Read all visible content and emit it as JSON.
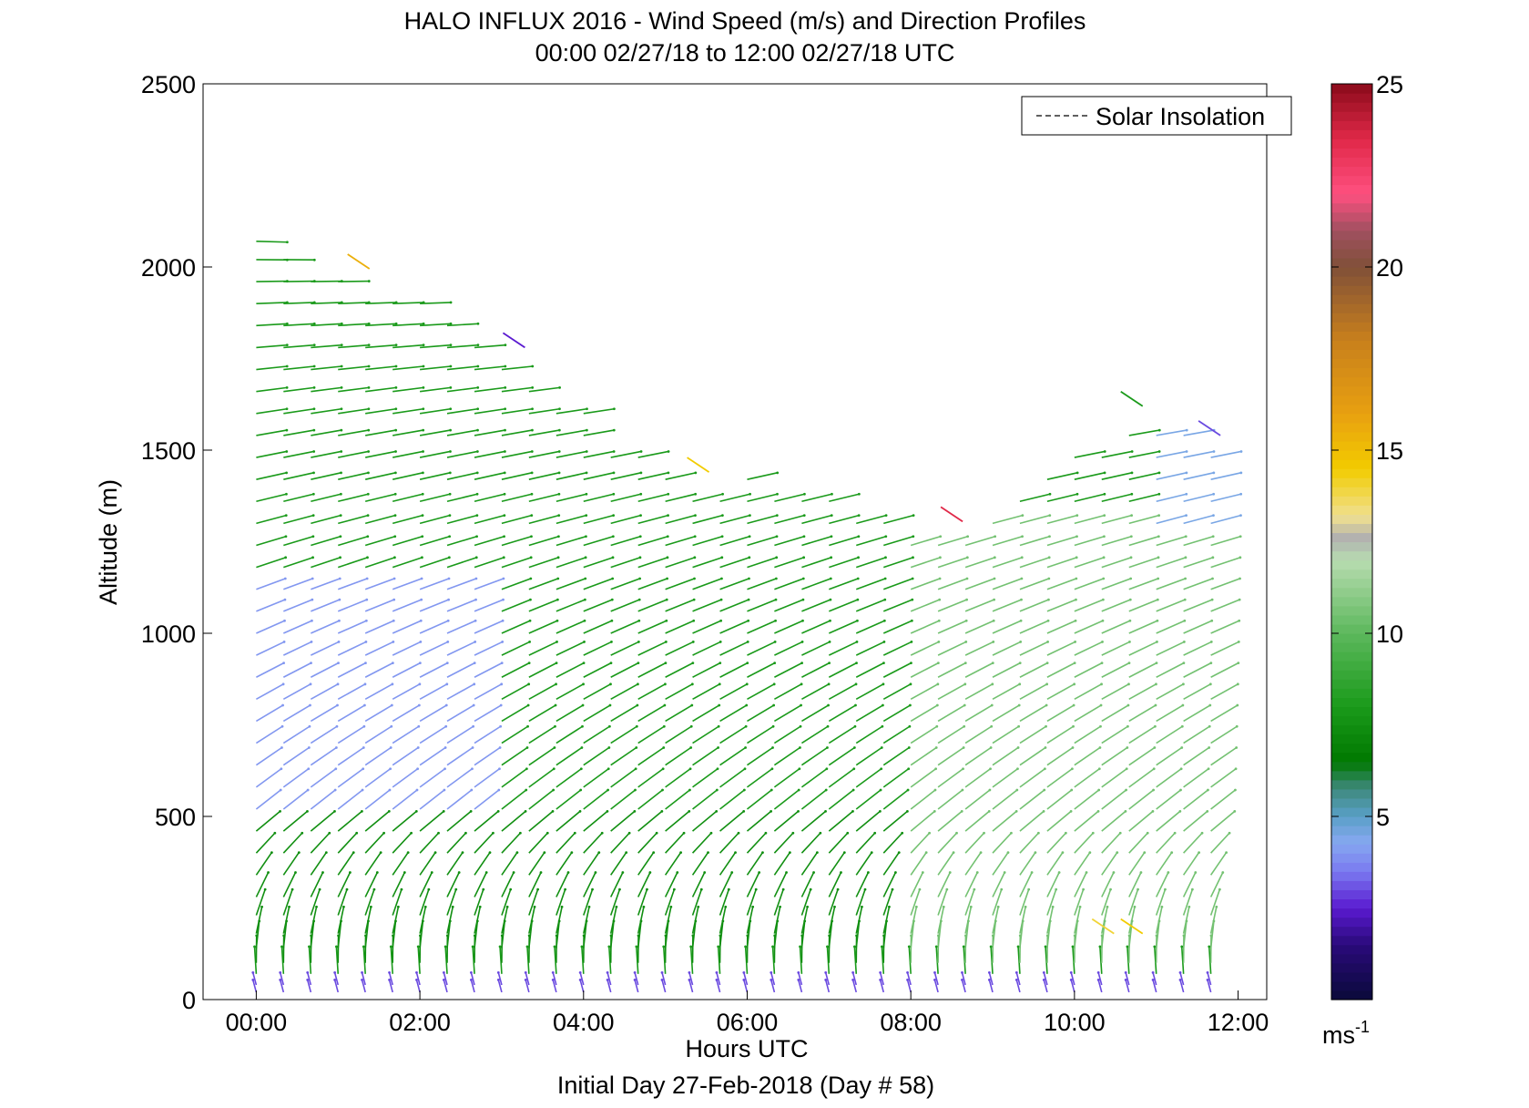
{
  "figure": {
    "title_line1": "HALO INFLUX 2016 - Wind Speed (m/s) and Direction Profiles",
    "title_line2": "00:00 02/27/18 to 12:00 02/27/18  UTC",
    "footer": "Initial Day 27-Feb-2018 (Day # 58)"
  },
  "chart_data": {
    "type": "scatter",
    "subtype": "wind barb / quiver profile",
    "xlabel": "Hours UTC",
    "ylabel": "Altitude (m)",
    "xlim_hours": [
      -0.65,
      12.35
    ],
    "ylim": [
      0,
      2500
    ],
    "x_ticks": [
      "00:00",
      "02:00",
      "04:00",
      "06:00",
      "08:00",
      "10:00",
      "12:00"
    ],
    "x_tick_hours": [
      0,
      2,
      4,
      6,
      8,
      10,
      12
    ],
    "y_ticks": [
      0,
      500,
      1000,
      1500,
      2000,
      2500
    ],
    "legend": {
      "entries": [
        "Solar Insolation"
      ],
      "placement": "top-right",
      "line_color": "#000000",
      "line_style": "dashed"
    },
    "colorbar": {
      "label": "ms",
      "label_superscript": "-1",
      "range": [
        0,
        25
      ],
      "ticks": [
        5,
        10,
        15,
        20,
        25
      ]
    },
    "profile_times_hours": [
      0,
      0.333,
      0.667,
      1.0,
      1.333,
      1.667,
      2.0,
      2.333,
      2.667,
      3.0,
      3.333,
      3.667,
      4.0,
      4.333,
      4.667,
      5.0,
      5.333,
      5.667,
      6.0,
      6.333,
      6.667,
      7.0,
      7.333,
      7.667,
      8.0,
      8.333,
      8.667,
      9.0,
      9.333,
      9.667,
      10.0,
      10.333,
      10.667,
      11.0,
      11.333,
      11.667
    ],
    "profile_top_altitudes_m": [
      2070,
      2030,
      2000,
      1990,
      1950,
      1920,
      1900,
      1860,
      1800,
      1750,
      1700,
      1640,
      1610,
      1530,
      1480,
      1420,
      1400,
      1380,
      1450,
      1400,
      1380,
      1360,
      1320,
      1300,
      1280,
      1260,
      1250,
      1330,
      1400,
      1450,
      1480,
      1500,
      1560,
      1560,
      1540,
      1510
    ],
    "vector_levels_m": [
      20,
      40,
      70,
      100,
      140,
      180,
      230,
      280,
      340,
      400,
      460,
      520,
      580,
      640,
      700,
      760,
      820,
      880,
      940,
      1000,
      1060,
      1120,
      1180,
      1240,
      1300,
      1360,
      1420,
      1480,
      1540,
      1600,
      1660,
      1720,
      1780,
      1840,
      1900,
      1960,
      2020,
      2070
    ],
    "speed_regimes": [
      {
        "from_hour": 0,
        "to_hour": 2.7,
        "altitude_range_m": [
          500,
          1150
        ],
        "speed_ms": 4.0
      },
      {
        "from_hour": 0,
        "to_hour": 12,
        "altitude_range_m": [
          100,
          500
        ],
        "speed_ms": 7.5
      },
      {
        "from_hour": 0,
        "to_hour": 12,
        "altitude_range_m": [
          1150,
          2100
        ],
        "speed_ms": 8.0
      },
      {
        "from_hour": 0,
        "to_hour": 12,
        "altitude_range_m": [
          0,
          60
        ],
        "speed_ms": 3.0
      },
      {
        "from_hour": 8,
        "to_hour": 12,
        "altitude_range_m": [
          100,
          1300
        ],
        "speed_ms": 10.5
      },
      {
        "from_hour": 11,
        "to_hour": 12,
        "altitude_range_m": [
          1300,
          1550
        ],
        "speed_ms": 4.5
      }
    ],
    "outliers": [
      {
        "hour": 1.25,
        "altitude_m": 2015,
        "speed_ms": 15.5
      },
      {
        "hour": 3.15,
        "altitude_m": 1800,
        "speed_ms": 2.5
      },
      {
        "hour": 5.4,
        "altitude_m": 1460,
        "speed_ms": 14.5
      },
      {
        "hour": 8.5,
        "altitude_m": 1325,
        "speed_ms": 23.5
      },
      {
        "hour": 10.7,
        "altitude_m": 1640,
        "speed_ms": 8.0
      },
      {
        "hour": 11.65,
        "altitude_m": 1560,
        "speed_ms": 3.0
      },
      {
        "hour": 10.35,
        "altitude_m": 200,
        "speed_ms": 14.0
      },
      {
        "hour": 10.7,
        "altitude_m": 200,
        "speed_ms": 14.5
      }
    ]
  }
}
